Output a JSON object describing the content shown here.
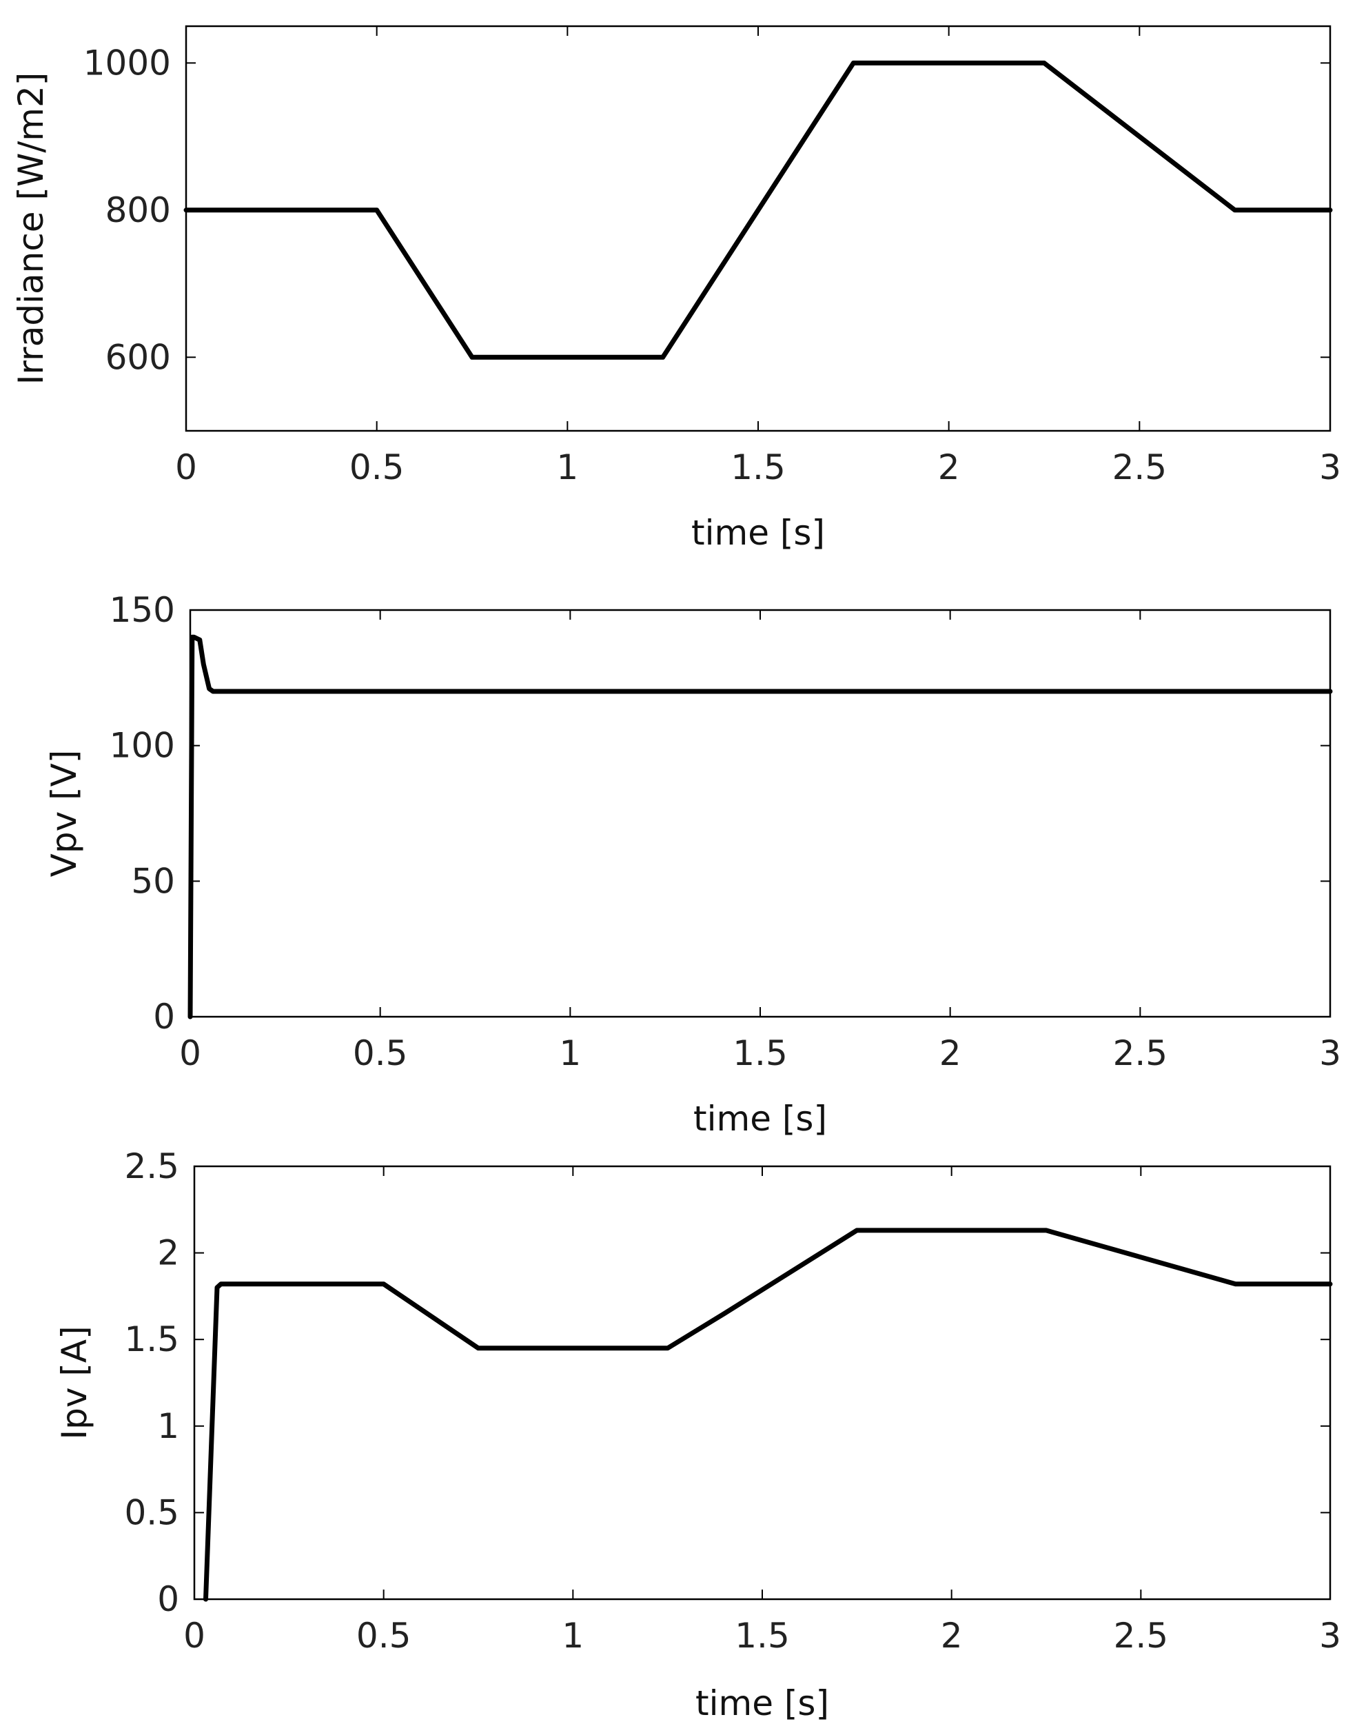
{
  "chart_data": [
    {
      "type": "line",
      "xlabel": "time [s]",
      "ylabel": "Irradiance [W/m2]",
      "xlim": [
        0,
        3
      ],
      "ylim": [
        500,
        1050
      ],
      "xticks": [
        0,
        0.5,
        1,
        1.5,
        2,
        2.5,
        3
      ],
      "xtick_labels": [
        "0",
        "0.5",
        "1",
        "1.5",
        "2",
        "2.5",
        "3"
      ],
      "yticks": [
        600,
        800,
        1000
      ],
      "ytick_labels": [
        "600",
        "800",
        "1000"
      ],
      "grid": false,
      "series": [
        {
          "x": [
            0,
            0.5,
            0.75,
            1.25,
            1.75,
            2.25,
            2.75,
            3
          ],
          "y": [
            800,
            800,
            600,
            600,
            1000,
            1000,
            800,
            800
          ]
        }
      ]
    },
    {
      "type": "line",
      "xlabel": "time [s]",
      "ylabel": "Vpv [V]",
      "xlim": [
        0,
        3
      ],
      "ylim": [
        0,
        150
      ],
      "xticks": [
        0,
        0.5,
        1,
        1.5,
        2,
        2.5,
        3
      ],
      "xtick_labels": [
        "0",
        "0.5",
        "1",
        "1.5",
        "2",
        "2.5",
        "3"
      ],
      "yticks": [
        0,
        50,
        100,
        150
      ],
      "ytick_labels": [
        "0",
        "50",
        "100",
        "150"
      ],
      "grid": false,
      "series": [
        {
          "x": [
            0,
            0.005,
            0.01,
            0.025,
            0.035,
            0.05,
            0.06,
            3
          ],
          "y": [
            0,
            140,
            140,
            139,
            130,
            121,
            120,
            120
          ]
        }
      ]
    },
    {
      "type": "line",
      "xlabel": "time [s]",
      "ylabel": "Ipv [A]",
      "xlim": [
        0,
        3
      ],
      "ylim": [
        0,
        2.5
      ],
      "xticks": [
        0,
        0.5,
        1,
        1.5,
        2,
        2.5,
        3
      ],
      "xtick_labels": [
        "0",
        "0.5",
        "1",
        "1.5",
        "2",
        "2.5",
        "3"
      ],
      "yticks": [
        0,
        0.5,
        1,
        1.5,
        2,
        2.5
      ],
      "ytick_labels": [
        "0",
        "0.5",
        "1",
        "1.5",
        "2",
        "2.5"
      ],
      "grid": false,
      "series": [
        {
          "x": [
            0.03,
            0.06,
            0.07,
            0.5,
            0.75,
            1.25,
            1.4,
            1.75,
            2.25,
            2.75,
            3
          ],
          "y": [
            0,
            1.8,
            1.82,
            1.82,
            1.45,
            1.45,
            1.65,
            2.13,
            2.13,
            1.82,
            1.82
          ]
        }
      ]
    }
  ]
}
